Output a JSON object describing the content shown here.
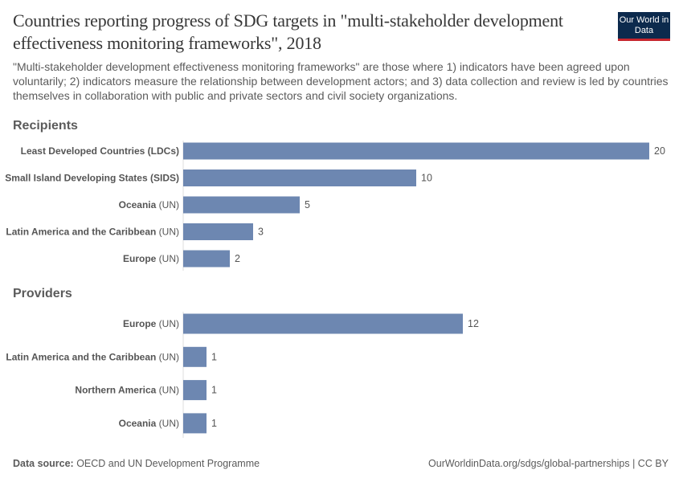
{
  "title": "Countries reporting progress of SDG targets in \"multi-stakeholder development effectiveness monitoring frameworks\", 2018",
  "subtitle": "\"Multi-stakeholder development effectiveness monitoring frameworks\" are those where 1) indicators have been agreed upon voluntarily; 2) indicators measure the relationship between development actors; and 3) data collection and review is led by countries themselves in collaboration with public and private sectors and civil society organizations.",
  "logo": "Our World in Data",
  "footer": {
    "source_label": "Data source:",
    "source": " OECD and UN Development Programme",
    "url": "OurWorldinData.org/sdgs/global-partnerships | CC BY"
  },
  "colors": {
    "bar": "#6d87b1"
  },
  "chart_data": [
    {
      "type": "bar",
      "orientation": "horizontal",
      "title": "Recipients",
      "categories": [
        {
          "name": "Least Developed Countries (LDCs)",
          "suffix": ""
        },
        {
          "name": "Small Island Developing States (SIDS)",
          "suffix": ""
        },
        {
          "name": "Oceania",
          "suffix": " (UN)"
        },
        {
          "name": "Latin America and the Caribbean",
          "suffix": " (UN)"
        },
        {
          "name": "Europe",
          "suffix": " (UN)"
        }
      ],
      "values": [
        20,
        10,
        5,
        3,
        2
      ],
      "xlim": [
        0,
        20
      ]
    },
    {
      "type": "bar",
      "orientation": "horizontal",
      "title": "Providers",
      "categories": [
        {
          "name": "Europe",
          "suffix": " (UN)"
        },
        {
          "name": "Latin America and the Caribbean",
          "suffix": " (UN)"
        },
        {
          "name": "Northern America",
          "suffix": " (UN)"
        },
        {
          "name": "Oceania",
          "suffix": " (UN)"
        }
      ],
      "values": [
        12,
        1,
        1,
        1
      ],
      "xlim": [
        0,
        20
      ]
    }
  ]
}
